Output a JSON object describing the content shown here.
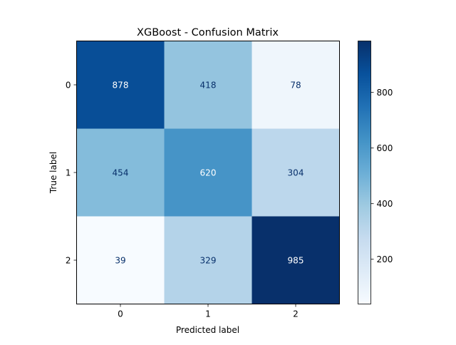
{
  "chart_data": {
    "type": "heatmap",
    "title": "XGBoost - Confusion Matrix",
    "xlabel": "Predicted label",
    "ylabel": "True label",
    "x_categories": [
      "0",
      "1",
      "2"
    ],
    "y_categories": [
      "0",
      "1",
      "2"
    ],
    "matrix": [
      [
        878,
        418,
        78
      ],
      [
        454,
        620,
        304
      ],
      [
        39,
        329,
        985
      ]
    ],
    "colormap": "Blues",
    "colorbar": {
      "range": [
        39,
        985
      ],
      "ticks": [
        200,
        400,
        600,
        800
      ]
    }
  }
}
